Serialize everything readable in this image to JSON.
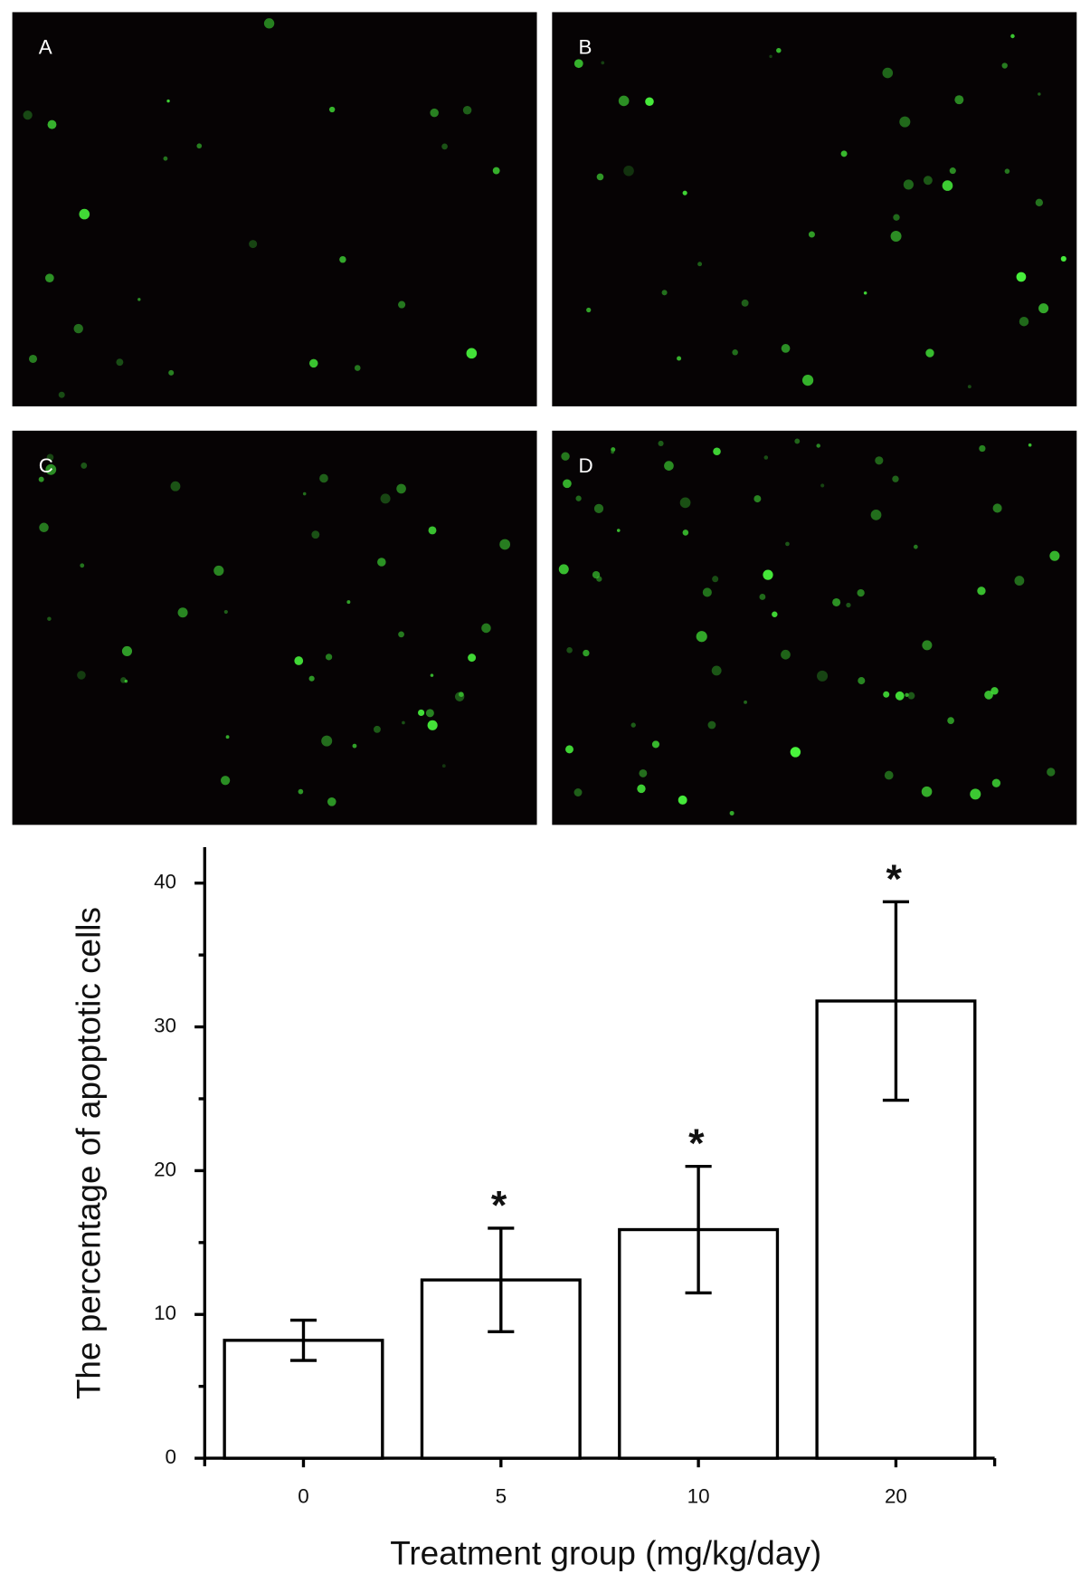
{
  "panels": [
    {
      "label": "A"
    },
    {
      "label": "B"
    },
    {
      "label": "C"
    },
    {
      "label": "D"
    }
  ],
  "chart_data": {
    "type": "bar",
    "y_label": "The percentage of apoptotic cells",
    "x_label": "Treatment group (mg/kg/day)",
    "categories": [
      "0",
      "5",
      "10",
      "20"
    ],
    "values": [
      8.2,
      12.4,
      15.9,
      31.8
    ],
    "errors": [
      1.4,
      3.6,
      4.4,
      6.9
    ],
    "significance": [
      null,
      "*",
      "*",
      "*"
    ],
    "color": "#ffffff",
    "ylim": [
      0,
      42.5
    ],
    "yticks": [
      0,
      10,
      20,
      30,
      40
    ],
    "yminor_ticks": [
      5,
      15,
      25,
      35
    ]
  }
}
